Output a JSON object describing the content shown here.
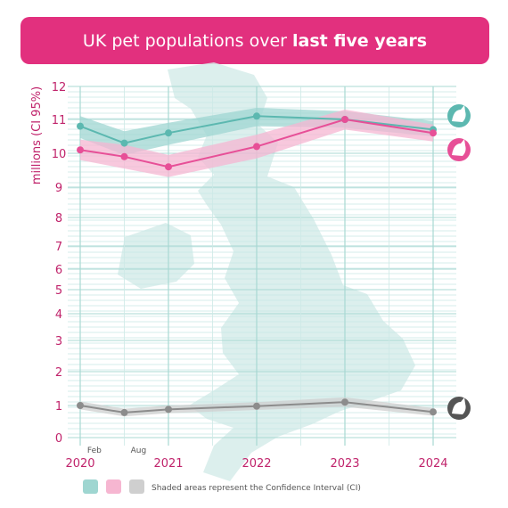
{
  "chart_data": {
    "type": "line",
    "title_regular": "UK pet populations over",
    "title_bold": "last five years",
    "ylabel": "millions (CI 95%)",
    "y_ticks": [
      0,
      1,
      2,
      3,
      4,
      5,
      6,
      7,
      8,
      9,
      10,
      11,
      12
    ],
    "x_ticks": [
      {
        "label": "2020",
        "x": 2020.0
      },
      {
        "label": "2021",
        "x": 2021.0
      },
      {
        "label": "2022",
        "x": 2022.0
      },
      {
        "label": "2023",
        "x": 2023.0
      },
      {
        "label": "2024",
        "x": 2024.0
      }
    ],
    "x_minor_labels": [
      {
        "label": "Feb",
        "x": 2020.1
      },
      {
        "label": "Aug",
        "x": 2020.6
      }
    ],
    "series": [
      {
        "key": "cats",
        "icon": "cat-icon",
        "color": "#5cb8b0",
        "band_color": "#9fd6d1",
        "x": [
          2020.0,
          2020.5,
          2021.0,
          2022.0,
          2023.0,
          2024.0
        ],
        "values": [
          10.8,
          10.3,
          10.6,
          11.1,
          11.0,
          10.7
        ],
        "lower": [
          10.45,
          9.95,
          10.25,
          10.8,
          10.75,
          10.5
        ],
        "upper": [
          11.1,
          10.65,
          10.9,
          11.35,
          11.25,
          10.95
        ]
      },
      {
        "key": "dogs",
        "icon": "dog-icon",
        "color": "#e74f97",
        "band_color": "#f6b6d1",
        "x": [
          2020.0,
          2020.5,
          2021.0,
          2022.0,
          2023.0,
          2024.0
        ],
        "values": [
          10.1,
          9.9,
          9.6,
          10.2,
          11.0,
          10.6
        ],
        "lower": [
          9.8,
          9.55,
          9.3,
          9.85,
          10.7,
          10.35
        ],
        "upper": [
          10.4,
          10.25,
          9.95,
          10.55,
          11.3,
          10.85
        ]
      },
      {
        "key": "rabbits",
        "icon": "rabbit-icon",
        "color": "#8c8c8c",
        "band_color": "#cfcfcf",
        "x": [
          2020.0,
          2020.5,
          2021.0,
          2022.0,
          2023.0,
          2024.0
        ],
        "values": [
          1.0,
          0.78,
          0.88,
          0.98,
          1.1,
          0.8
        ],
        "lower": [
          0.88,
          0.66,
          0.76,
          0.86,
          0.96,
          0.68
        ],
        "upper": [
          1.12,
          0.9,
          1.0,
          1.1,
          1.24,
          0.92
        ]
      }
    ],
    "legend_note": "Shaded areas represent the Confidence Interval (CI)",
    "legend_swatches": [
      "#9fd6d1",
      "#f6b6d1",
      "#cfcfcf"
    ],
    "grid": true,
    "background_map": "uk-map"
  }
}
